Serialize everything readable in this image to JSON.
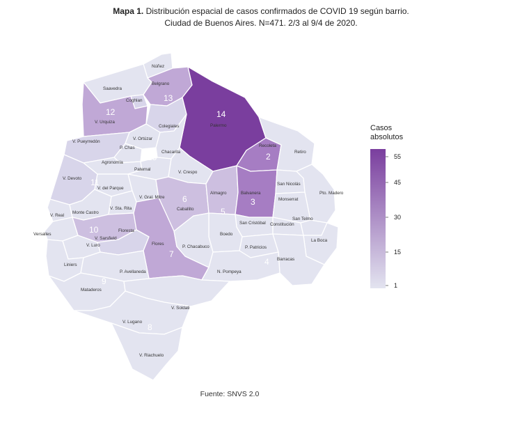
{
  "title": {
    "bold": "Mapa 1.",
    "line1": "Distribución espacial de casos confirmados de COVID 19 según barrio.",
    "line2": "Ciudad de Buenos Aires. N=471. 2/3 al 9/4 de 2020."
  },
  "source": "Fuente: SNVS 2.0",
  "legend": {
    "title_line1": "Casos",
    "title_line2": "absolutos",
    "ticks": [
      55,
      45,
      30,
      15,
      1
    ],
    "color_high": "#7a3e9e",
    "color_low": "#e3e4f0"
  },
  "colors": {
    "c0": "#e3e4f0",
    "c1": "#d8d5ea",
    "c2": "#cdbfe0",
    "c3": "#c0a8d6",
    "c4": "#a67dc3",
    "c5": "#8c52b0",
    "c6": "#7a3e9e",
    "border": "#ffffff"
  },
  "neighborhoods": {
    "nunez": "Núñez",
    "saavedra": "Saavedra",
    "coghlan": "Coghlan",
    "belgrano": "Belgrano",
    "v_urquiza": "V. Urquiza",
    "palermo": "Palermo",
    "colegiales": "Colegiales",
    "v_pueyrredon": "V. Pueyrredón",
    "v_ortuzar": "V. Ortúzar",
    "p_chas": "P. Chas",
    "chacarita": "Chacarita",
    "recoleta": "Recoleta",
    "retiro": "Retiro",
    "agronomia": "Agronomía",
    "paternal": "Paternal",
    "v_crespo": "V. Crespo",
    "v_devoto": "V. Devoto",
    "v_del_parque": "V. del Parque",
    "v_gral_mitre": "V. Gral. Mitre",
    "caballito": "Caballito",
    "almagro": "Almagro",
    "balvanera": "Balvanera",
    "san_nicolas": "San Nicolás",
    "pto_madero": "Pto. Madero",
    "monserrat": "Monserrat",
    "v_real": "V. Real",
    "monte_castro": "Monte Castro",
    "v_sta_rita": "V. Sta. Rita",
    "san_cristobal": "San Cristóbal",
    "constitucion": "Constitución",
    "san_telmo": "San Telmo",
    "versalles": "Versalles",
    "floresta": "Floresta",
    "v_sarsfield": "V. Sarsfield",
    "boedo": "Boedo",
    "v_luro": "V. Luro",
    "flores": "Flores",
    "p_chacabuco": "P. Chacabuco",
    "p_patricios": "P. Patricios",
    "la_boca": "La Boca",
    "liniers": "Liniers",
    "barracas": "Barracas",
    "p_avellaneda": "P. Avellaneda",
    "n_pompeya": "N. Pompeya",
    "mataderos": "Mataderos",
    "v_soldati": "V. Soldati",
    "v_lugano": "V. Lugano",
    "v_riachuelo": "V. Riachuelo"
  },
  "counts": {
    "palermo": "14",
    "belgrano": "13",
    "v_urquiza": "12",
    "recoleta": "2",
    "chacarita": "15",
    "v_devoto": "11",
    "caballito": "6",
    "almagro": "5",
    "balvanera": "3",
    "floresta": "10",
    "flores": "7",
    "mataderos": "9",
    "v_lugano": "8",
    "barracas": "4"
  }
}
